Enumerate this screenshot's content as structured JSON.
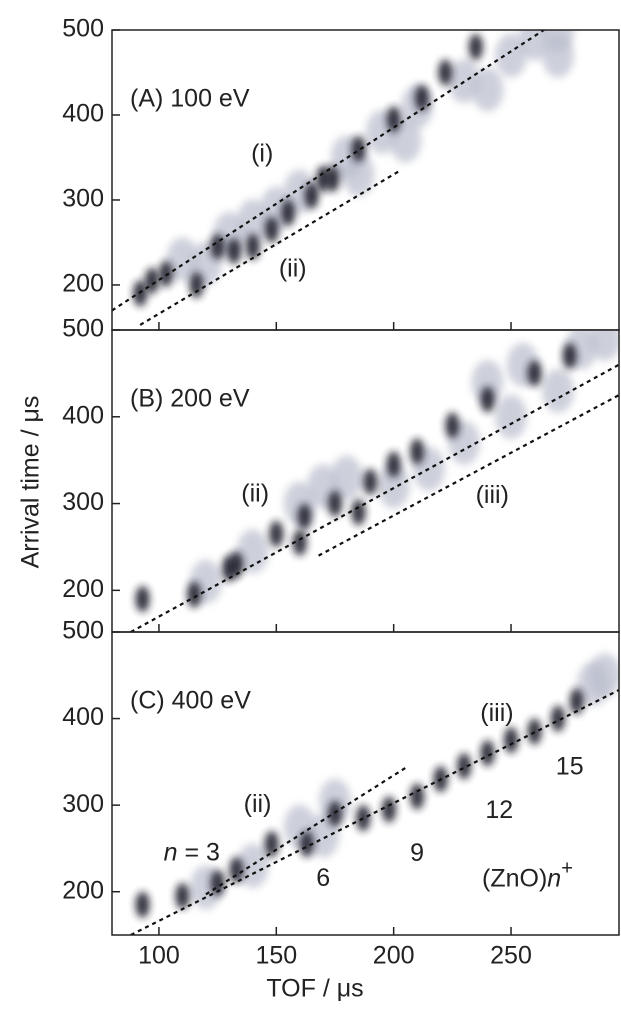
{
  "x_label": "TOF / μs",
  "y_label": "Arrival time / μs",
  "chart_data": [
    {
      "type": "scatter",
      "title": "(A) 100 eV",
      "xlim": [
        80,
        296
      ],
      "ylim": [
        147,
        500
      ],
      "xticks": [
        100,
        150,
        200,
        250
      ],
      "yticks": [
        200,
        300,
        400,
        500
      ],
      "series": [
        {
          "color": "#b9bdcc",
          "x": [
            110,
            130,
            150,
            160,
            180,
            195,
            210,
            230,
            250,
            260,
            270,
            185,
            205,
            240,
            270,
            120,
            140
          ],
          "values": [
            230,
            260,
            290,
            310,
            350,
            380,
            410,
            440,
            470,
            490,
            500,
            330,
            370,
            430,
            470,
            225,
            275
          ]
        },
        {
          "color": "#1b1e2c",
          "x": [
            92,
            97,
            103,
            116,
            125,
            132,
            140,
            148,
            155,
            165,
            170,
            174,
            185,
            200,
            212,
            222,
            235
          ],
          "values": [
            190,
            205,
            213,
            200,
            245,
            240,
            245,
            265,
            285,
            305,
            325,
            325,
            360,
            395,
            420,
            450,
            480
          ]
        }
      ],
      "lines": [
        {
          "x": [
            80,
            264
          ],
          "values": [
            170,
            500
          ]
        },
        {
          "x": [
            92,
            203
          ],
          "values": [
            153,
            335
          ]
        }
      ],
      "annotations": [
        {
          "text": "(i)",
          "x": 144,
          "y": 353
        },
        {
          "text": "(ii)",
          "x": 157,
          "y": 218
        }
      ]
    },
    {
      "type": "scatter",
      "title": "(B) 200 eV",
      "xlim": [
        80,
        296
      ],
      "ylim": [
        152,
        500
      ],
      "xticks": [
        100,
        150,
        200,
        250
      ],
      "yticks": [
        200,
        300,
        400,
        500
      ],
      "series": [
        {
          "color": "#b9bdcc",
          "x": [
            120,
            140,
            170,
            180,
            200,
            215,
            230,
            250,
            270,
            280,
            290,
            255,
            160,
            240
          ],
          "values": [
            210,
            245,
            320,
            330,
            320,
            340,
            370,
            400,
            430,
            480,
            490,
            460,
            300,
            440
          ]
        },
        {
          "color": "#1b1e2c",
          "x": [
            93,
            115,
            130,
            133,
            150,
            160,
            162,
            175,
            185,
            190,
            200,
            210,
            225,
            240,
            260,
            275
          ],
          "values": [
            190,
            195,
            225,
            230,
            265,
            255,
            285,
            300,
            290,
            325,
            345,
            360,
            390,
            420,
            450,
            470
          ]
        }
      ],
      "lines": [
        {
          "x": [
            88,
            296
          ],
          "values": [
            152,
            460
          ]
        },
        {
          "x": [
            168,
            296
          ],
          "values": [
            240,
            425
          ]
        }
      ],
      "annotations": [
        {
          "text": "(ii)",
          "x": 141,
          "y": 310
        },
        {
          "text": "(iii)",
          "x": 242,
          "y": 308
        }
      ]
    },
    {
      "type": "scatter",
      "title": "(C) 400 eV",
      "xlim": [
        80,
        296
      ],
      "ylim": [
        150,
        500
      ],
      "xticks": [
        100,
        150,
        200,
        250
      ],
      "yticks": [
        200,
        300,
        400,
        500
      ],
      "series": [
        {
          "color": "#b9bdcc",
          "x": [
            140,
            160,
            175,
            285,
            290,
            170,
            120
          ],
          "values": [
            230,
            275,
            305,
            440,
            450,
            265,
            205
          ]
        },
        {
          "color": "#1b1e2c",
          "x": [
            93,
            110,
            125,
            133,
            148,
            163,
            175,
            187,
            198,
            210,
            220,
            230,
            240,
            250,
            260,
            270,
            278
          ],
          "values": [
            185,
            195,
            210,
            225,
            255,
            255,
            290,
            285,
            295,
            310,
            330,
            345,
            360,
            375,
            385,
            400,
            420
          ]
        }
      ],
      "lines": [
        {
          "x": [
            88,
            296
          ],
          "values": [
            150,
            433
          ]
        },
        {
          "x": [
            120,
            205
          ],
          "values": [
            197,
            343
          ]
        }
      ],
      "annotations": [
        {
          "text": "(ii)",
          "x": 142,
          "y": 300
        },
        {
          "text": "(iii)",
          "x": 244,
          "y": 405
        },
        {
          "parts": [
            "n",
            " = 3"
          ],
          "x": 114,
          "y": 244
        },
        {
          "text": "6",
          "x": 170,
          "y": 214
        },
        {
          "text": "9",
          "x": 210,
          "y": 243
        },
        {
          "text": "12",
          "x": 245,
          "y": 293
        },
        {
          "text": "15",
          "x": 275,
          "y": 343
        },
        {
          "parts": [
            "(ZnO)",
            "n",
            "+"
          ],
          "x": 257,
          "y": 214
        }
      ]
    }
  ]
}
